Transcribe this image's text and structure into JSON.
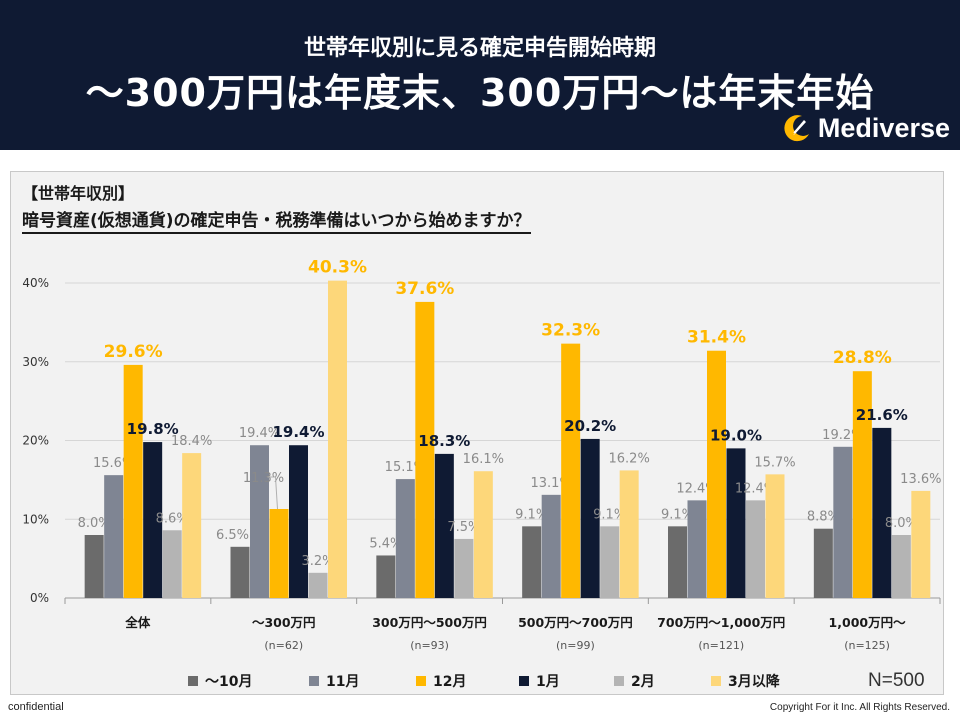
{
  "header": {
    "title_line1": "世帯年収別に見る確定申告開始時期",
    "title_line2": "～300万円は年度末、300万円～は年末年始",
    "brand": "Mediverse"
  },
  "question": {
    "tag": "【世帯年収別】",
    "text": "暗号資産(仮想通貨)の確定申告・税務準備はいつから始めますか？"
  },
  "sample_size": "N=500",
  "footer": {
    "left": "confidential",
    "right": "Copyright For it Inc. All Rights Reserved."
  },
  "colors": {
    "header_bg": "#0f1a33",
    "series": [
      "#6b6b6b",
      "#7f8593",
      "#ffb800",
      "#0f1a33",
      "#b4b4b4",
      "#fdd77a"
    ],
    "highlight_label": "#ffb800",
    "highlight_label_dark": "#0f1a33"
  },
  "chart_data": {
    "type": "bar",
    "categories": [
      "全体",
      "～300万円",
      "300万円～500万円",
      "500万円～700万円",
      "700万円～1,000万円",
      "1,000万円～"
    ],
    "category_notes": [
      "",
      "(n=62)",
      "(n=93)",
      "(n=99)",
      "(n=121)",
      "(n=125)"
    ],
    "series": [
      {
        "name": "～10月",
        "values": [
          8.0,
          6.5,
          5.4,
          9.1,
          9.1,
          8.8
        ]
      },
      {
        "name": "11月",
        "values": [
          15.6,
          19.4,
          15.1,
          13.1,
          12.4,
          19.2
        ]
      },
      {
        "name": "12月",
        "values": [
          29.6,
          11.3,
          37.6,
          32.3,
          31.4,
          28.8
        ]
      },
      {
        "name": "1月",
        "values": [
          19.8,
          19.4,
          18.3,
          20.2,
          19.0,
          21.6
        ]
      },
      {
        "name": "2月",
        "values": [
          8.6,
          3.2,
          7.5,
          9.1,
          12.4,
          8.0
        ]
      },
      {
        "name": "3月以降",
        "values": [
          18.4,
          40.3,
          16.1,
          16.2,
          15.7,
          13.6
        ]
      }
    ],
    "value_labels": [
      [
        "8.0%",
        "15.6%",
        "29.6%",
        "19.8%",
        "8.6%",
        "18.4%"
      ],
      [
        "6.5%",
        "19.4%",
        "11.3%",
        "19.4%",
        "3.2%",
        "40.3%"
      ],
      [
        "5.4%",
        "15.1%",
        "37.6%",
        "18.3%",
        "7.5%",
        "16.1%"
      ],
      [
        "9.1%",
        "13.1%",
        "32.3%",
        "20.2%",
        "9.1%",
        "16.2%"
      ],
      [
        "9.1%",
        "12.4%",
        "31.4%",
        "19.0%",
        "12.4%",
        "15.7%"
      ],
      [
        "8.8%",
        "19.2%",
        "28.8%",
        "21.6%",
        "8.0%",
        "13.6%"
      ]
    ],
    "highlight": [
      [
        2,
        3
      ],
      [
        5,
        3
      ],
      [
        2,
        3
      ],
      [
        2,
        3
      ],
      [
        2,
        3
      ],
      [
        2,
        3
      ]
    ],
    "ylim": [
      0,
      40
    ],
    "yticks": [
      "0%",
      "10%",
      "20%",
      "30%",
      "40%"
    ],
    "grid": true,
    "legend_position": "bottom"
  }
}
